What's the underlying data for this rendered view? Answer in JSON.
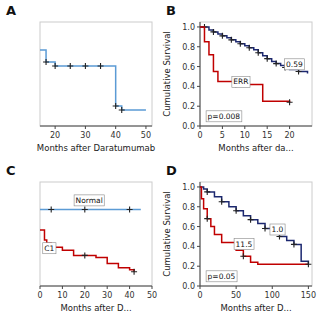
{
  "chart_data": [
    {
      "type": "step",
      "title": "A",
      "x_label": "Months after Daratumumab",
      "xlim": [
        15,
        52
      ],
      "ylim": [
        0.5,
        1.02
      ],
      "xticks": [
        20,
        30,
        40,
        50
      ],
      "tick_labels": "x",
      "series": [
        {
          "type": "step",
          "color": "#5b9bd5",
          "x": [
            15,
            17,
            20,
            22,
            25,
            30,
            35,
            40,
            40,
            42,
            50
          ],
          "values": [
            0.88,
            0.82,
            0.8,
            0.8,
            0.8,
            0.8,
            0.8,
            0.8,
            0.6,
            0.58,
            0.58
          ]
        },
        {
          "type": "scatter",
          "marker": "plus",
          "color": "#222222",
          "x": [
            17,
            20,
            25,
            30,
            35,
            40,
            42
          ],
          "values": [
            0.82,
            0.8,
            0.8,
            0.8,
            0.8,
            0.6,
            0.58
          ]
        }
      ]
    },
    {
      "type": "step",
      "title": "B",
      "x_label": "Months after da...",
      "y_label": "Cumulative Survival",
      "xlim": [
        0,
        25
      ],
      "ylim": [
        0.0,
        1.05
      ],
      "xticks": [
        0,
        5,
        10,
        15,
        20
      ],
      "yticks": [
        {
          "value": 0,
          "label": "0.0"
        },
        0.2,
        0.4,
        0.6,
        0.8,
        {
          "value": 1,
          "label": "1.0"
        }
      ],
      "series": [
        {
          "type": "step",
          "color": "#1c2870",
          "x": [
            0,
            1,
            2,
            3,
            4,
            5,
            6,
            7,
            8,
            9,
            10,
            11,
            12,
            13,
            14,
            15,
            16,
            17,
            18,
            19,
            20,
            22,
            24
          ],
          "values": [
            1.0,
            1.0,
            0.97,
            0.95,
            0.93,
            0.91,
            0.89,
            0.87,
            0.85,
            0.83,
            0.81,
            0.79,
            0.77,
            0.74,
            0.71,
            0.68,
            0.65,
            0.63,
            0.61,
            0.59,
            0.57,
            0.55,
            0.53
          ]
        },
        {
          "type": "scatter",
          "marker": "plus",
          "color": "#222222",
          "x": [
            1,
            3,
            5,
            7,
            9,
            11,
            13,
            15,
            17,
            19,
            22
          ],
          "values": [
            1.0,
            0.95,
            0.91,
            0.87,
            0.83,
            0.79,
            0.74,
            0.68,
            0.63,
            0.59,
            0.55
          ]
        },
        {
          "type": "step",
          "color": "#c00000",
          "x": [
            0,
            1,
            2,
            3,
            4,
            5,
            6,
            7,
            8,
            14,
            20
          ],
          "values": [
            1.0,
            0.85,
            0.72,
            0.55,
            0.45,
            0.45,
            0.45,
            0.45,
            0.42,
            0.25,
            0.24
          ]
        },
        {
          "type": "scatter",
          "marker": "plus",
          "color": "#222222",
          "x": [
            8,
            20
          ],
          "values": [
            0.42,
            0.24
          ]
        }
      ],
      "annotations": [
        {
          "text": "0.59"
        },
        {
          "text": "ERR"
        },
        {
          "text": "p=0.008"
        }
      ]
    },
    {
      "type": "step",
      "title": "C",
      "x_label": "Months after D...",
      "xlim": [
        0,
        50
      ],
      "ylim": [
        0.0,
        1.02
      ],
      "xticks": [
        0,
        10,
        20,
        30,
        40,
        50
      ],
      "tick_labels": "x",
      "series": [
        {
          "type": "line",
          "color": "#5b9bd5",
          "x": [
            0,
            5,
            10,
            20,
            30,
            40,
            45
          ],
          "values": [
            0.75,
            0.75,
            0.75,
            0.75,
            0.75,
            0.75,
            0.75
          ]
        },
        {
          "type": "scatter",
          "marker": "plus",
          "color": "#222222",
          "x": [
            5,
            20,
            40
          ],
          "values": [
            0.75,
            0.75,
            0.75
          ]
        },
        {
          "type": "step",
          "color": "#c00000",
          "x": [
            0,
            2,
            3,
            5,
            10,
            15,
            25,
            30,
            35,
            40,
            42
          ],
          "values": [
            0.55,
            0.45,
            0.42,
            0.38,
            0.35,
            0.3,
            0.28,
            0.22,
            0.18,
            0.16,
            0.14
          ]
        },
        {
          "type": "scatter",
          "marker": "plus",
          "color": "#222222",
          "x": [
            20,
            42
          ],
          "values": [
            0.3,
            0.14
          ]
        }
      ],
      "annotations": [
        {
          "text": "Normal"
        },
        {
          "text": "C1"
        }
      ]
    },
    {
      "type": "step",
      "title": "D",
      "x_label": "Months after D...",
      "y_label": "Cumulative Survival",
      "xlim": [
        0,
        155
      ],
      "ylim": [
        0.0,
        1.05
      ],
      "xticks": [
        0,
        50,
        100,
        150
      ],
      "yticks": [
        {
          "value": 0,
          "label": "0.0"
        },
        0.2,
        0.4,
        0.6,
        0.8,
        {
          "value": 1,
          "label": "1.0"
        }
      ],
      "series": [
        {
          "type": "step",
          "color": "#1c2870",
          "x": [
            0,
            5,
            10,
            20,
            30,
            40,
            50,
            60,
            70,
            80,
            90,
            100,
            110,
            120,
            130,
            140,
            150
          ],
          "values": [
            1.0,
            0.98,
            0.95,
            0.9,
            0.85,
            0.8,
            0.76,
            0.71,
            0.67,
            0.63,
            0.58,
            0.54,
            0.5,
            0.46,
            0.42,
            0.25,
            0.22
          ]
        },
        {
          "type": "scatter",
          "marker": "plus",
          "color": "#222222",
          "x": [
            10,
            30,
            50,
            70,
            90,
            110,
            130
          ],
          "values": [
            0.95,
            0.85,
            0.76,
            0.67,
            0.58,
            0.5,
            0.42
          ]
        },
        {
          "type": "step",
          "color": "#c00000",
          "x": [
            0,
            2,
            5,
            10,
            15,
            20,
            30,
            50,
            60,
            70,
            80,
            100,
            110,
            130,
            150
          ],
          "values": [
            1.0,
            0.88,
            0.78,
            0.68,
            0.6,
            0.52,
            0.44,
            0.36,
            0.3,
            0.24,
            0.22,
            0.22,
            0.22,
            0.22,
            0.22
          ]
        },
        {
          "type": "scatter",
          "marker": "plus",
          "color": "#222222",
          "x": [
            10,
            60,
            150
          ],
          "values": [
            0.68,
            0.3,
            0.22
          ]
        }
      ],
      "annotations": [
        {
          "text": "1.0"
        },
        {
          "text": "11.5"
        },
        {
          "text": "p=0.05"
        }
      ]
    }
  ]
}
